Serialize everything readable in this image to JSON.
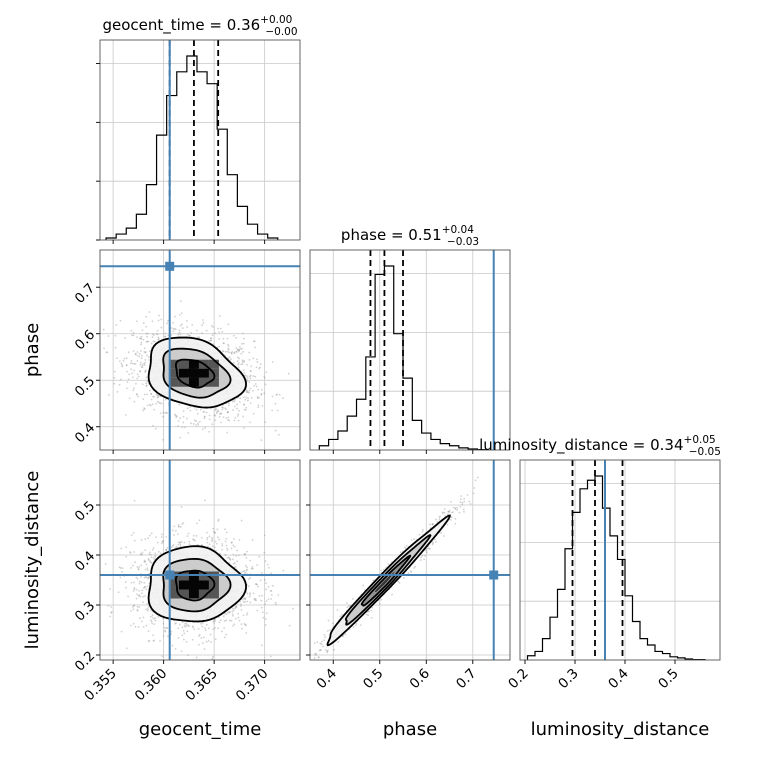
{
  "chart_data": {
    "type": "corner",
    "parameters": [
      {
        "name": "geocent_time",
        "axis_label": "geocent_time",
        "title_main": "geocent_time = 0.36",
        "title_plus": "+0.00",
        "title_minus": "−0.00",
        "lim": [
          0.3537,
          0.3735
        ],
        "ticks": [
          0.355,
          0.36,
          0.365,
          0.37
        ],
        "tick_labels": [
          "0.355",
          "0.360",
          "0.365",
          "0.370"
        ],
        "truth": 0.3606,
        "quantiles": [
          0.3606,
          0.363,
          0.3654
        ],
        "hist_bins": [
          0.3543,
          0.3553,
          0.3563,
          0.3573,
          0.3583,
          0.3593,
          0.3603,
          0.3613,
          0.3623,
          0.3633,
          0.3643,
          0.3653,
          0.3663,
          0.3673,
          0.3683,
          0.3693,
          0.3703,
          0.3713
        ],
        "hist_counts": [
          0.01,
          0.03,
          0.06,
          0.13,
          0.28,
          0.53,
          0.73,
          0.85,
          0.93,
          0.85,
          0.79,
          0.56,
          0.33,
          0.17,
          0.08,
          0.03,
          0.01
        ]
      },
      {
        "name": "phase",
        "axis_label": "phase",
        "title_main": "phase = 0.51",
        "title_plus": "+0.04",
        "title_minus": "−0.03",
        "lim": [
          0.35,
          0.78
        ],
        "ticks": [
          0.4,
          0.5,
          0.6,
          0.7
        ],
        "tick_labels": [
          "0.4",
          "0.5",
          "0.6",
          "0.7"
        ],
        "truth": 0.745,
        "quantiles": [
          0.48,
          0.51,
          0.55
        ],
        "hist_bins": [
          0.37,
          0.39,
          0.41,
          0.43,
          0.45,
          0.47,
          0.49,
          0.51,
          0.53,
          0.55,
          0.57,
          0.59,
          0.61,
          0.63,
          0.65,
          0.67,
          0.69,
          0.71,
          0.73
        ],
        "hist_counts": [
          0.02,
          0.05,
          0.09,
          0.16,
          0.24,
          0.44,
          0.83,
          0.87,
          0.55,
          0.34,
          0.14,
          0.08,
          0.05,
          0.03,
          0.02,
          0.01,
          0.005,
          0.002
        ]
      },
      {
        "name": "luminosity_distance",
        "axis_label": "luminosity_distance",
        "title_main": "luminosity_distance = 0.34",
        "title_plus": "+0.05",
        "title_minus": "−0.05",
        "lim": [
          0.19,
          0.59
        ],
        "ticks": [
          0.2,
          0.3,
          0.4,
          0.5
        ],
        "tick_labels": [
          "0.2",
          "0.3",
          "0.4",
          "0.5"
        ],
        "y_tick_labels": [
          "0.2",
          "0.3",
          "0.4",
          "0.5"
        ],
        "truth": 0.36,
        "quantiles": [
          0.295,
          0.34,
          0.395
        ],
        "hist_bins": [
          0.205,
          0.22,
          0.235,
          0.25,
          0.265,
          0.28,
          0.295,
          0.31,
          0.325,
          0.34,
          0.355,
          0.37,
          0.385,
          0.4,
          0.415,
          0.43,
          0.445,
          0.46,
          0.475,
          0.49,
          0.505,
          0.52,
          0.535,
          0.56
        ],
        "hist_counts": [
          0.02,
          0.04,
          0.1,
          0.2,
          0.33,
          0.52,
          0.69,
          0.8,
          0.84,
          0.86,
          0.71,
          0.58,
          0.47,
          0.3,
          0.18,
          0.1,
          0.07,
          0.04,
          0.03,
          0.015,
          0.01,
          0.005,
          0.002
        ]
      }
    ],
    "y_axis_labels": [
      "phase",
      "luminosity_distance"
    ],
    "contours": {
      "phase_vs_geocent_time": {
        "center": [
          0.363,
          0.515
        ],
        "spread": [
          0.0022,
          0.035
        ],
        "correlation": -0.25
      },
      "luminosity_distance_vs_geocent_time": {
        "center": [
          0.363,
          0.34
        ],
        "spread": [
          0.0022,
          0.035
        ],
        "correlation": 0.0
      },
      "luminosity_distance_vs_phase": {
        "center": [
          0.51,
          0.345
        ],
        "spread": [
          0.06,
          0.058
        ],
        "correlation": 0.985
      }
    },
    "colors": {
      "truth": "#4682b4",
      "hist": "#000000",
      "scatter": "#9a9a9a",
      "grid": "#c8c8c8"
    },
    "grid": true
  }
}
